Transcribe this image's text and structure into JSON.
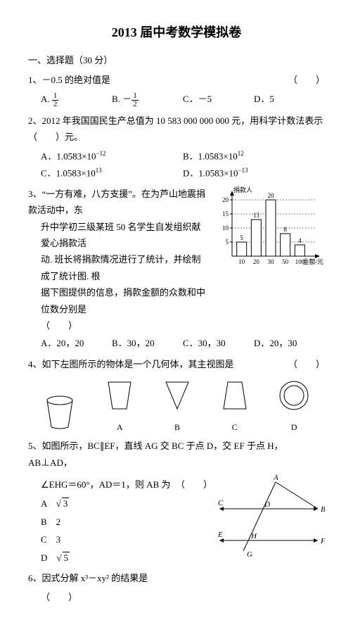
{
  "title": "2013 届中考数学模拟卷",
  "section1": "一、选择题（30 分）",
  "q1": {
    "stem": "1、－0.5 的绝对值是",
    "optA_label": "A.",
    "optB_label": "B.",
    "optB_prefix": "－",
    "optC": "C．－5",
    "optD": "D．5"
  },
  "frac_half_num": "1",
  "frac_half_den": "2",
  "q2": {
    "stem": "2、2012 年我国国民生产总值为 10 583 000 000 000 元，用科学计数法表示（　　）元。",
    "optA": "A．1.0583×10",
    "optA_exp": "−12",
    "optB": "B．1.0583×10",
    "optB_exp": "12",
    "optC": "C．1.0583×10",
    "optC_exp": "13",
    "optD": "D．1.0583×10",
    "optD_exp": "−13"
  },
  "q3": {
    "line1": "3、“一方有难，八方支援”。在为芦山地震捐款活动中，东",
    "line2": "升中学初三级某班 50 名学生自发组织献爱心捐款活",
    "line3": "动. 班长将捐款情况进行了统计，并绘制成了统计图. 根",
    "line4": "据下图提供的信息，捐款金额的众数和中位数分别是",
    "line5": "（　　）",
    "optA": "A．20，20",
    "optB": "B．30，20",
    "optC": "C．30，30",
    "optD": "D．20，30",
    "chart": {
      "ylabel": "捐款人",
      "xlabel": "金额/元",
      "ymax": 20,
      "yticks": [
        5,
        10,
        15,
        20
      ],
      "bars": [
        {
          "x": "10",
          "v": 5,
          "lbl": "5"
        },
        {
          "x": "20",
          "v": 13,
          "lbl": "13"
        },
        {
          "x": "30",
          "v": 20,
          "lbl": "20"
        },
        {
          "x": "50",
          "v": 8,
          "lbl": "8"
        },
        {
          "x": "100",
          "v": 4,
          "lbl": "4"
        }
      ],
      "bar_color": "#ffffff",
      "bar_border": "#000000",
      "axis_color": "#000000"
    }
  },
  "q4": {
    "stem": "4、如下左图所示的物体是一个几何体，其主视图是",
    "lblA": "A",
    "lblB": "B",
    "lblC": "C",
    "lblD": "D"
  },
  "q5": {
    "lineA": "5、如图所示，BC∥EF，直线 AG 交 BC 于点 D，交 EF 于点 H，AB⊥AD，",
    "lineB": "∠EHG＝60°，AD＝1，则 AB 为",
    "optA_label": "A",
    "optA_val": "3",
    "optB": "B　2",
    "optC": "C　3",
    "optD_label": "D",
    "optD_val": "5",
    "labels": {
      "A": "A",
      "B": "B",
      "C": "C",
      "D": "D",
      "E": "E",
      "F": "F",
      "G": "G",
      "H": "H"
    }
  },
  "q6": {
    "stem": "6、因式分解 x³－xy² 的结果是",
    "paren": "（　　）"
  },
  "blank_paren": "（　　）"
}
